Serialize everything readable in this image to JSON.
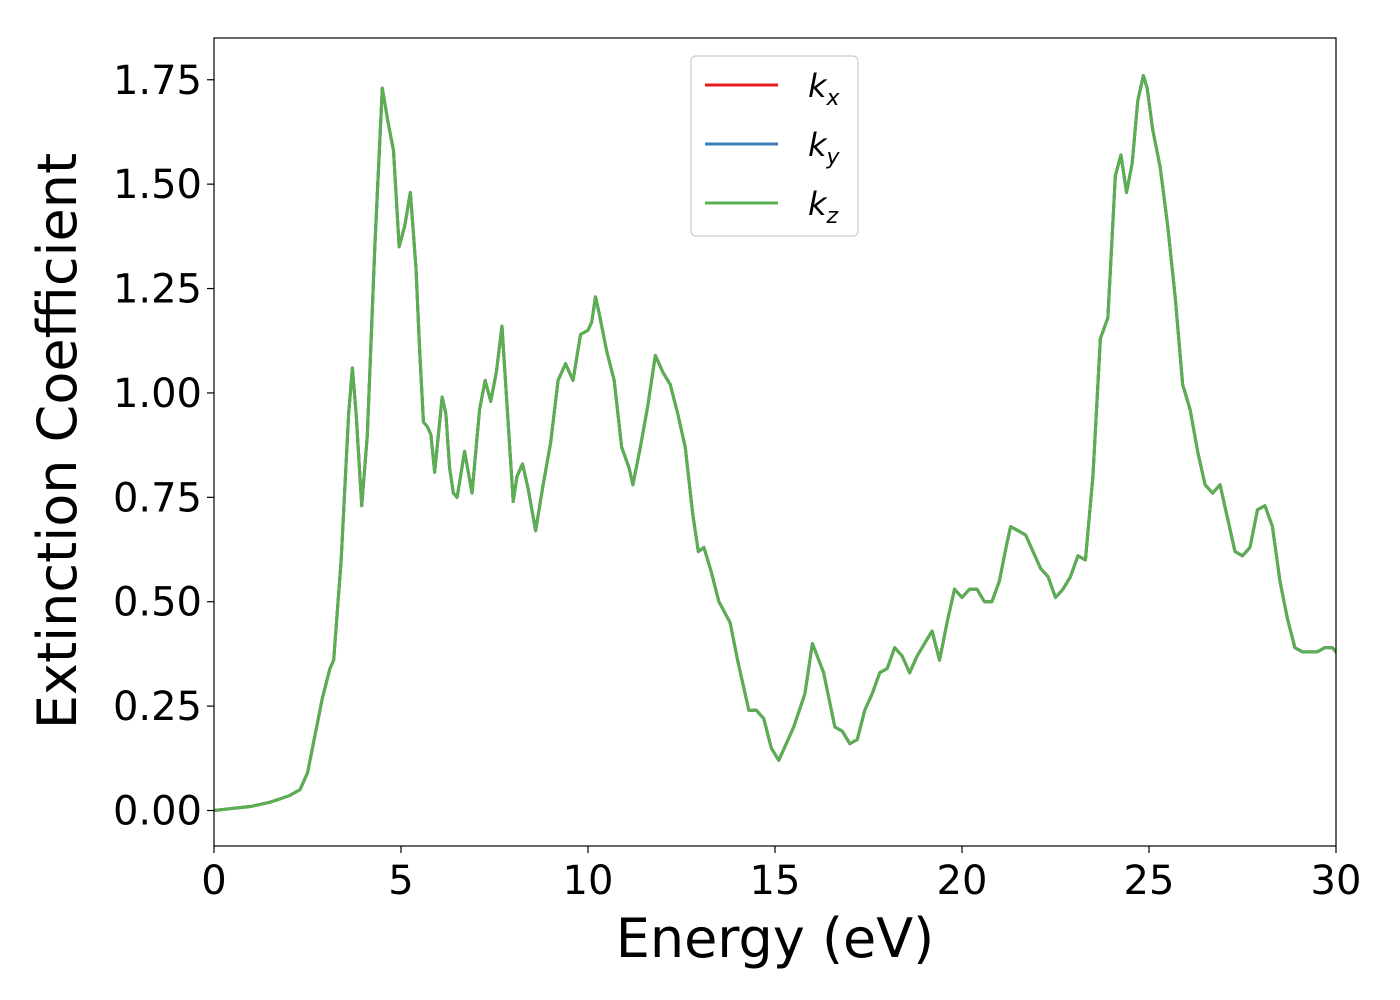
{
  "chart_data": {
    "type": "line",
    "xlabel": "Energy (eV)",
    "ylabel": "Extinction Coefficient",
    "xlim": [
      0,
      30
    ],
    "ylim": [
      -0.085,
      1.85
    ],
    "xticks": [
      0,
      5,
      10,
      15,
      20,
      25,
      30
    ],
    "xtick_labels": [
      "0",
      "5",
      "10",
      "15",
      "20",
      "25",
      "30"
    ],
    "yticks": [
      0,
      0.25,
      0.5,
      0.75,
      1.0,
      1.25,
      1.5,
      1.75
    ],
    "ytick_labels": [
      "0.00",
      "0.25",
      "0.50",
      "0.75",
      "1.00",
      "1.25",
      "1.50",
      "1.75"
    ],
    "grid": false,
    "legend_position": "top-center",
    "x": [
      0,
      0.5,
      1.0,
      1.5,
      2.0,
      2.3,
      2.5,
      2.7,
      2.9,
      3.1,
      3.2,
      3.4,
      3.6,
      3.7,
      3.8,
      3.95,
      4.1,
      4.3,
      4.5,
      4.65,
      4.8,
      4.95,
      5.1,
      5.25,
      5.4,
      5.5,
      5.6,
      5.7,
      5.8,
      5.9,
      6.0,
      6.1,
      6.2,
      6.3,
      6.4,
      6.5,
      6.7,
      6.9,
      7.1,
      7.25,
      7.4,
      7.55,
      7.7,
      7.85,
      8.0,
      8.1,
      8.25,
      8.4,
      8.6,
      8.8,
      9.0,
      9.2,
      9.4,
      9.6,
      9.8,
      10.0,
      10.1,
      10.2,
      10.3,
      10.5,
      10.7,
      10.9,
      11.1,
      11.2,
      11.4,
      11.6,
      11.8,
      11.9,
      12.0,
      12.2,
      12.4,
      12.6,
      12.8,
      12.95,
      13.1,
      13.3,
      13.5,
      13.8,
      14.0,
      14.2,
      14.3,
      14.5,
      14.7,
      14.9,
      15.1,
      15.3,
      15.5,
      15.8,
      16.0,
      16.3,
      16.6,
      16.8,
      17.0,
      17.2,
      17.4,
      17.6,
      17.8,
      18.0,
      18.2,
      18.4,
      18.6,
      18.8,
      19.0,
      19.2,
      19.4,
      19.6,
      19.8,
      20.0,
      20.2,
      20.4,
      20.6,
      20.8,
      21.0,
      21.2,
      21.3,
      21.5,
      21.7,
      21.9,
      22.1,
      22.3,
      22.5,
      22.7,
      22.9,
      23.1,
      23.3,
      23.5,
      23.7,
      23.9,
      24.1,
      24.25,
      24.4,
      24.55,
      24.7,
      24.85,
      24.95,
      25.1,
      25.3,
      25.5,
      25.7,
      25.9,
      26.1,
      26.3,
      26.5,
      26.7,
      26.9,
      27.1,
      27.3,
      27.5,
      27.7,
      27.9,
      28.1,
      28.3,
      28.5,
      28.7,
      28.9,
      29.1,
      29.3,
      29.5,
      29.7,
      29.9,
      30.0
    ],
    "series": [
      {
        "name": "k_x",
        "color": "#e41a1c",
        "values": [
          0.0,
          0.005,
          0.01,
          0.02,
          0.035,
          0.05,
          0.09,
          0.18,
          0.27,
          0.34,
          0.36,
          0.6,
          0.95,
          1.06,
          0.95,
          0.73,
          0.9,
          1.35,
          1.73,
          1.65,
          1.58,
          1.35,
          1.4,
          1.48,
          1.3,
          1.1,
          0.93,
          0.92,
          0.9,
          0.81,
          0.9,
          0.99,
          0.95,
          0.82,
          0.76,
          0.75,
          0.86,
          0.76,
          0.96,
          1.03,
          0.98,
          1.05,
          1.16,
          0.95,
          0.74,
          0.8,
          0.83,
          0.77,
          0.67,
          0.78,
          0.88,
          1.03,
          1.07,
          1.03,
          1.14,
          1.15,
          1.17,
          1.23,
          1.19,
          1.1,
          1.03,
          0.87,
          0.82,
          0.78,
          0.87,
          0.97,
          1.09,
          1.07,
          1.05,
          1.02,
          0.95,
          0.87,
          0.71,
          0.62,
          0.63,
          0.57,
          0.5,
          0.45,
          0.36,
          0.28,
          0.24,
          0.24,
          0.22,
          0.15,
          0.12,
          0.16,
          0.2,
          0.28,
          0.4,
          0.33,
          0.2,
          0.19,
          0.16,
          0.17,
          0.24,
          0.28,
          0.33,
          0.34,
          0.39,
          0.37,
          0.33,
          0.37,
          0.4,
          0.43,
          0.36,
          0.45,
          0.53,
          0.51,
          0.53,
          0.53,
          0.5,
          0.5,
          0.55,
          0.64,
          0.68,
          0.67,
          0.66,
          0.62,
          0.58,
          0.56,
          0.51,
          0.53,
          0.56,
          0.61,
          0.6,
          0.8,
          1.13,
          1.18,
          1.52,
          1.57,
          1.48,
          1.55,
          1.7,
          1.76,
          1.73,
          1.63,
          1.54,
          1.4,
          1.23,
          1.02,
          0.96,
          0.86,
          0.78,
          0.76,
          0.78,
          0.7,
          0.62,
          0.61,
          0.63,
          0.72,
          0.73,
          0.68,
          0.55,
          0.46,
          0.39,
          0.38,
          0.38,
          0.38,
          0.39,
          0.39,
          0.38
        ]
      },
      {
        "name": "k_y",
        "color": "#377eb8",
        "values": [
          0.0,
          0.005,
          0.01,
          0.02,
          0.035,
          0.05,
          0.09,
          0.18,
          0.27,
          0.34,
          0.36,
          0.6,
          0.95,
          1.06,
          0.95,
          0.73,
          0.9,
          1.35,
          1.73,
          1.65,
          1.58,
          1.35,
          1.4,
          1.48,
          1.3,
          1.1,
          0.93,
          0.92,
          0.9,
          0.81,
          0.9,
          0.99,
          0.95,
          0.82,
          0.76,
          0.75,
          0.86,
          0.76,
          0.96,
          1.03,
          0.98,
          1.05,
          1.16,
          0.95,
          0.74,
          0.8,
          0.83,
          0.77,
          0.67,
          0.78,
          0.88,
          1.03,
          1.07,
          1.03,
          1.14,
          1.15,
          1.17,
          1.23,
          1.19,
          1.1,
          1.03,
          0.87,
          0.82,
          0.78,
          0.87,
          0.97,
          1.09,
          1.07,
          1.05,
          1.02,
          0.95,
          0.87,
          0.71,
          0.62,
          0.63,
          0.57,
          0.5,
          0.45,
          0.36,
          0.28,
          0.24,
          0.24,
          0.22,
          0.15,
          0.12,
          0.16,
          0.2,
          0.28,
          0.4,
          0.33,
          0.2,
          0.19,
          0.16,
          0.17,
          0.24,
          0.28,
          0.33,
          0.34,
          0.39,
          0.37,
          0.33,
          0.37,
          0.4,
          0.43,
          0.36,
          0.45,
          0.53,
          0.51,
          0.53,
          0.53,
          0.5,
          0.5,
          0.55,
          0.64,
          0.68,
          0.67,
          0.66,
          0.62,
          0.58,
          0.56,
          0.51,
          0.53,
          0.56,
          0.61,
          0.6,
          0.8,
          1.13,
          1.18,
          1.52,
          1.57,
          1.48,
          1.55,
          1.7,
          1.76,
          1.73,
          1.63,
          1.54,
          1.4,
          1.23,
          1.02,
          0.96,
          0.86,
          0.78,
          0.76,
          0.78,
          0.7,
          0.62,
          0.61,
          0.63,
          0.72,
          0.73,
          0.68,
          0.55,
          0.46,
          0.39,
          0.38,
          0.38,
          0.38,
          0.39,
          0.39,
          0.38
        ]
      },
      {
        "name": "k_z",
        "color": "#5aaf50",
        "values": [
          0.0,
          0.005,
          0.01,
          0.02,
          0.035,
          0.05,
          0.09,
          0.18,
          0.27,
          0.34,
          0.36,
          0.6,
          0.95,
          1.06,
          0.95,
          0.73,
          0.9,
          1.35,
          1.73,
          1.65,
          1.58,
          1.35,
          1.4,
          1.48,
          1.3,
          1.1,
          0.93,
          0.92,
          0.9,
          0.81,
          0.9,
          0.99,
          0.95,
          0.82,
          0.76,
          0.75,
          0.86,
          0.76,
          0.96,
          1.03,
          0.98,
          1.05,
          1.16,
          0.95,
          0.74,
          0.8,
          0.83,
          0.77,
          0.67,
          0.78,
          0.88,
          1.03,
          1.07,
          1.03,
          1.14,
          1.15,
          1.17,
          1.23,
          1.19,
          1.1,
          1.03,
          0.87,
          0.82,
          0.78,
          0.87,
          0.97,
          1.09,
          1.07,
          1.05,
          1.02,
          0.95,
          0.87,
          0.71,
          0.62,
          0.63,
          0.57,
          0.5,
          0.45,
          0.36,
          0.28,
          0.24,
          0.24,
          0.22,
          0.15,
          0.12,
          0.16,
          0.2,
          0.28,
          0.4,
          0.33,
          0.2,
          0.19,
          0.16,
          0.17,
          0.24,
          0.28,
          0.33,
          0.34,
          0.39,
          0.37,
          0.33,
          0.37,
          0.4,
          0.43,
          0.36,
          0.45,
          0.53,
          0.51,
          0.53,
          0.53,
          0.5,
          0.5,
          0.55,
          0.64,
          0.68,
          0.67,
          0.66,
          0.62,
          0.58,
          0.56,
          0.51,
          0.53,
          0.56,
          0.61,
          0.6,
          0.8,
          1.13,
          1.18,
          1.52,
          1.57,
          1.48,
          1.55,
          1.7,
          1.76,
          1.73,
          1.63,
          1.54,
          1.4,
          1.23,
          1.02,
          0.96,
          0.86,
          0.78,
          0.76,
          0.78,
          0.7,
          0.62,
          0.61,
          0.63,
          0.72,
          0.73,
          0.68,
          0.55,
          0.46,
          0.39,
          0.38,
          0.38,
          0.38,
          0.39,
          0.39,
          0.38
        ]
      }
    ],
    "legend": [
      {
        "base": "k",
        "sub": "x"
      },
      {
        "base": "k",
        "sub": "y"
      },
      {
        "base": "k",
        "sub": "z"
      }
    ]
  }
}
